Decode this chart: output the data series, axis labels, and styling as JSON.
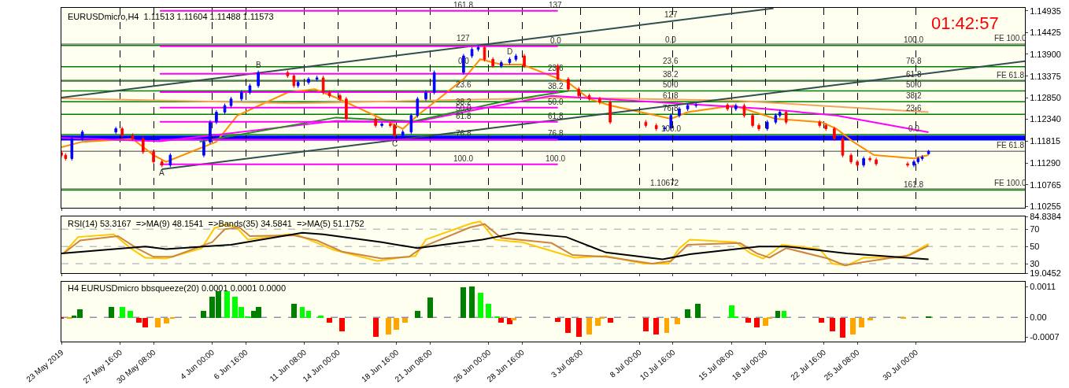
{
  "chart_data": [
    {
      "type": "candlestick",
      "title": "EURUSDmicro,H4  1.11513 1.11604 1.11488 1.11573",
      "x": [
        "2019-05-23T00:00",
        "2019-05-23T08:00",
        "2019-05-23T20:00",
        "2019-05-24T16:00",
        "2019-05-27T08:00",
        "2019-05-27T20:00",
        "2019-05-28T16:00",
        "2019-05-29T12:00",
        "2019-05-30T08:00",
        "2019-05-31T00:00",
        "2019-05-31T16:00",
        "2019-06-03T08:00",
        "2019-06-03T20:00",
        "2019-06-04T08:00",
        "2019-06-05T00:00",
        "2019-06-05T12:00",
        "2019-06-06T08:00",
        "2019-06-07T00:00",
        "2019-06-07T16:00",
        "2019-06-10T00:00",
        "2019-06-10T12:00",
        "2019-06-10T20:00",
        "2019-06-11T16:00",
        "2019-06-12T08:00",
        "2019-06-12T20:00",
        "2019-06-13T08:00",
        "2019-06-14T04:00",
        "2019-06-14T16:00",
        "2019-06-17T00:00",
        "2019-06-17T12:00",
        "2019-06-18T04:00",
        "2019-06-18T12:00",
        "2019-06-19T04:00",
        "2019-06-19T20:00",
        "2019-06-20T08:00",
        "2019-06-21T00:00",
        "2019-06-21T16:00",
        "2019-06-24T00:00",
        "2019-06-24T16:00",
        "2019-06-25T04:00",
        "2019-06-25T16:00",
        "2019-06-26T08:00",
        "2019-06-27T00:00",
        "2019-06-27T16:00",
        "2019-06-28T04:00",
        "2019-06-28T20:00",
        "2019-07-01T12:00",
        "2019-07-02T08:00",
        "2019-07-03T04:00",
        "2019-07-04T00:00",
        "2019-07-04T20:00",
        "2019-07-05T16:00",
        "2019-07-08T12:00",
        "2019-07-09T08:00",
        "2019-07-10T00:00",
        "2019-07-10T12:00",
        "2019-07-11T04:00",
        "2019-07-11T20:00",
        "2019-07-12T12:00",
        "2019-07-15T00:00",
        "2019-07-15T16:00",
        "2019-07-16T08:00",
        "2019-07-17T00:00",
        "2019-07-17T12:00",
        "2019-07-18T04:00",
        "2019-07-18T20:00",
        "2019-07-19T04:00",
        "2019-07-19T16:00",
        "2019-07-22T08:00",
        "2019-07-22T20:00",
        "2019-07-23T12:00",
        "2019-07-24T04:00",
        "2019-07-24T20:00",
        "2019-07-25T08:00",
        "2019-07-25T20:00",
        "2019-07-26T08:00",
        "2019-07-26T20:00",
        "2019-07-29T08:00",
        "2019-07-29T20:00",
        "2019-07-30T04:00",
        "2019-07-30T12:00",
        "2019-07-31T00:00"
      ],
      "ohlc": [
        [
          1.1154,
          1.1159,
          1.11428,
          1.11478
        ],
        [
          1.11478,
          1.11528,
          1.11348,
          1.11398
        ],
        [
          1.11398,
          1.11924,
          1.11348,
          1.11874
        ],
        [
          1.11874,
          1.12083,
          1.11824,
          1.12033
        ],
        [
          1.12033,
          1.12162,
          1.11983,
          1.12112
        ],
        [
          1.12112,
          1.12162,
          1.11903,
          1.11953
        ],
        [
          1.11953,
          1.12003,
          1.11824,
          1.11874
        ],
        [
          1.11874,
          1.11924,
          1.11507,
          1.11557
        ],
        [
          1.11557,
          1.11607,
          1.11269,
          1.11319
        ],
        [
          1.11319,
          1.11369,
          1.1119,
          1.1124
        ],
        [
          1.1124,
          1.11528,
          1.1119,
          1.11478
        ],
        [
          1.11478,
          1.11845,
          1.11428,
          1.11795
        ],
        [
          1.11795,
          1.12321,
          1.11745,
          1.12271
        ],
        [
          1.12271,
          1.12558,
          1.12221,
          1.12508
        ],
        [
          1.12508,
          1.12717,
          1.12458,
          1.12667
        ],
        [
          1.12667,
          1.12876,
          1.12617,
          1.12826
        ],
        [
          1.12826,
          1.13034,
          1.12776,
          1.12984
        ],
        [
          1.12984,
          1.13193,
          1.12934,
          1.13143
        ],
        [
          1.13143,
          1.1351,
          1.13093,
          1.1346
        ],
        [
          1.1346,
          1.1351,
          1.13331,
          1.13381
        ],
        [
          1.13381,
          1.13431,
          1.13093,
          1.13143
        ],
        [
          1.13143,
          1.13272,
          1.13093,
          1.13222
        ],
        [
          1.13222,
          1.13351,
          1.13172,
          1.13301
        ],
        [
          1.13301,
          1.13383,
          1.13251,
          1.13333
        ],
        [
          1.13333,
          1.13383,
          1.12934,
          1.12984
        ],
        [
          1.12984,
          1.13034,
          1.12855,
          1.12905
        ],
        [
          1.12905,
          1.12955,
          1.12776,
          1.12826
        ],
        [
          1.12826,
          1.12876,
          1.123,
          1.1235
        ],
        [
          1.1235,
          1.124,
          1.12141,
          1.12191
        ],
        [
          1.12191,
          1.12273,
          1.12141,
          1.12223
        ],
        [
          1.12223,
          1.12273,
          1.12141,
          1.12191
        ],
        [
          1.12191,
          1.12241,
          1.11903,
          1.11953
        ],
        [
          1.11953,
          1.12083,
          1.11903,
          1.12033
        ],
        [
          1.12033,
          1.12479,
          1.11983,
          1.12429
        ],
        [
          1.12429,
          1.12876,
          1.12379,
          1.12826
        ],
        [
          1.12826,
          1.13034,
          1.12776,
          1.12984
        ],
        [
          1.12984,
          1.1351,
          1.12934,
          1.1346
        ],
        [
          1.1346,
          1.13907,
          1.1341,
          1.13857
        ],
        [
          1.13857,
          1.14065,
          1.13807,
          1.14015
        ],
        [
          1.14015,
          1.14113,
          1.13965,
          1.14063
        ],
        [
          1.14063,
          1.14113,
          1.13727,
          1.13777
        ],
        [
          1.13777,
          1.13827,
          1.13569,
          1.13619
        ],
        [
          1.13619,
          1.13748,
          1.13569,
          1.13698
        ],
        [
          1.13698,
          1.13827,
          1.13648,
          1.13777
        ],
        [
          1.13777,
          1.13907,
          1.13727,
          1.13857
        ],
        [
          1.13857,
          1.13907,
          1.13569,
          1.13619
        ],
        [
          1.13619,
          1.13669,
          1.13251,
          1.13301
        ],
        [
          1.13301,
          1.13351,
          1.13014,
          1.13064
        ],
        [
          1.13064,
          1.13114,
          1.12855,
          1.12905
        ],
        [
          1.12905,
          1.12955,
          1.12776,
          1.12826
        ],
        [
          1.12826,
          1.12876,
          1.12696,
          1.12746
        ],
        [
          1.12746,
          1.12796,
          1.12221,
          1.12271
        ],
        [
          1.12271,
          1.12321,
          1.12141,
          1.12191
        ],
        [
          1.12191,
          1.12241,
          1.12062,
          1.12112
        ],
        [
          1.12112,
          1.1218,
          1.12062,
          1.1213
        ],
        [
          1.1213,
          1.12479,
          1.1208,
          1.12429
        ],
        [
          1.12429,
          1.12638,
          1.12379,
          1.12588
        ],
        [
          1.12588,
          1.12717,
          1.12538,
          1.12667
        ],
        [
          1.12667,
          1.1273,
          1.12617,
          1.1268
        ],
        [
          1.1268,
          1.1273,
          1.12538,
          1.12588
        ],
        [
          1.12588,
          1.12717,
          1.12538,
          1.12667
        ],
        [
          1.12667,
          1.12717,
          1.12379,
          1.12429
        ],
        [
          1.12429,
          1.12479,
          1.12141,
          1.12191
        ],
        [
          1.12191,
          1.12241,
          1.12062,
          1.12112
        ],
        [
          1.12112,
          1.12321,
          1.12062,
          1.12271
        ],
        [
          1.12271,
          1.12479,
          1.12221,
          1.12429
        ],
        [
          1.12429,
          1.12558,
          1.12379,
          1.12508
        ],
        [
          1.12508,
          1.12558,
          1.12221,
          1.12271
        ],
        [
          1.12271,
          1.12321,
          1.12141,
          1.12191
        ],
        [
          1.12191,
          1.12241,
          1.12062,
          1.12112
        ],
        [
          1.12112,
          1.12162,
          1.11824,
          1.11874
        ],
        [
          1.11874,
          1.11924,
          1.11428,
          1.11478
        ],
        [
          1.11478,
          1.11528,
          1.11269,
          1.11319
        ],
        [
          1.11319,
          1.11369,
          1.1119,
          1.1124
        ],
        [
          1.1124,
          1.11448,
          1.1119,
          1.11398
        ],
        [
          1.11398,
          1.11448,
          1.11317,
          1.11367
        ],
        [
          1.11367,
          1.11417,
          1.11221,
          1.11271
        ],
        [
          1.11271,
          1.11321,
          1.1119,
          1.1124
        ],
        [
          1.1124,
          1.11369,
          1.1119,
          1.11319
        ],
        [
          1.11319,
          1.11448,
          1.11269,
          1.11398
        ],
        [
          1.11398,
          1.1148,
          1.11348,
          1.1143
        ],
        [
          1.11513,
          1.11604,
          1.11488,
          1.11573
        ]
      ],
      "colors": [
        "#ff0000",
        "#ff0000",
        "#0000ff",
        "#0000ff",
        "#0000ff",
        "#ff0000",
        "#ff0000",
        "#ff0000",
        "#ff0000",
        "#ff0000",
        "#0000ff",
        "#0000ff",
        "#0000ff",
        "#0000ff",
        "#0000ff",
        "#0000ff",
        "#0000ff",
        "#0000ff",
        "#0000ff",
        "#ff0000",
        "#ff0000",
        "#0000ff",
        "#0000ff",
        "#0000ff",
        "#ff0000",
        "#ff0000",
        "#ff0000",
        "#ff0000",
        "#ff0000",
        "#0000ff",
        "#ff0000",
        "#ff0000",
        "#0000ff",
        "#0000ff",
        "#0000ff",
        "#0000ff",
        "#0000ff",
        "#0000ff",
        "#0000ff",
        "#0000ff",
        "#ff0000",
        "#ff0000",
        "#0000ff",
        "#0000ff",
        "#0000ff",
        "#ff0000",
        "#ff0000",
        "#ff0000",
        "#ff0000",
        "#ff0000",
        "#ff0000",
        "#ff0000",
        "#ff0000",
        "#ff0000",
        "#0000ff",
        "#0000ff",
        "#0000ff",
        "#0000ff",
        "#0000ff",
        "#ff0000",
        "#0000ff",
        "#ff0000",
        "#ff0000",
        "#ff0000",
        "#0000ff",
        "#0000ff",
        "#0000ff",
        "#ff0000",
        "#ff0000",
        "#ff0000",
        "#ff0000",
        "#ff0000",
        "#ff0000",
        "#ff0000",
        "#0000ff",
        "#ff0000",
        "#ff0000",
        "#ff0000",
        "#0000ff",
        "#0000ff",
        "#0000ff",
        "#0000ff"
      ],
      "series": [
        {
          "type": "line",
          "color": "#ff8c00",
          "x": [
            "2019-05-23T00:00",
            "2019-05-24T16:00",
            "2019-05-28T16:00",
            "2019-05-30T08:00",
            "2019-05-31T08:00",
            "2019-06-04T08:00",
            "2019-06-06T00:00",
            "2019-06-10T00:00",
            "2019-06-12T04:00",
            "2019-06-13T20:00",
            "2019-06-17T12:00",
            "2019-06-19T04:00",
            "2019-06-20T08:00",
            "2019-06-24T00:00",
            "2019-06-25T08:00",
            "2019-06-27T00:00",
            "2019-06-28T16:00",
            "2019-07-02T08:00",
            "2019-07-04T00:00",
            "2019-07-05T16:00",
            "2019-07-09T08:00",
            "2019-07-10T12:00",
            "2019-07-11T20:00",
            "2019-07-15T12:00",
            "2019-07-17T04:00",
            "2019-07-18T20:00",
            "2019-07-22T12:00",
            "2019-07-23T16:00",
            "2019-07-25T00:00",
            "2019-07-26T16:00",
            "2019-07-29T20:00",
            "2019-07-31T00:00"
          ],
          "values": [
            1.1167,
            1.118,
            1.1187,
            1.1148,
            1.1132,
            1.118,
            1.1243,
            1.1298,
            1.1306,
            1.1286,
            1.1235,
            1.1211,
            1.1243,
            1.133,
            1.1378,
            1.1365,
            1.1365,
            1.1322,
            1.1283,
            1.1267,
            1.1243,
            1.1235,
            1.1251,
            1.1267,
            1.1251,
            1.1235,
            1.1227,
            1.1211,
            1.118,
            1.1148,
            1.114,
            1.1148
          ]
        },
        {
          "type": "line",
          "color": "#f4a460",
          "x": [
            "2019-05-23T00:00",
            "2019-06-10T12:00",
            "2019-07-02T08:00",
            "2019-07-15T12:00",
            "2019-07-31T00:00"
          ],
          "values": [
            1.1284,
            1.1272,
            1.1286,
            1.1279,
            1.1251
          ]
        },
        {
          "type": "line",
          "color": "#ff00ff",
          "x": [
            "2019-05-23T00:00",
            "2019-05-30T20:00",
            "2019-06-13T20:00",
            "2019-06-20T00:00",
            "2019-06-25T08:00",
            "2019-07-01T00:00",
            "2019-07-09T08:00",
            "2019-07-18T00:00",
            "2019-07-23T16:00",
            "2019-07-31T00:00"
          ],
          "values": [
            1.1189,
            1.1181,
            1.123,
            1.1227,
            1.1259,
            1.129,
            1.1275,
            1.1259,
            1.1243,
            1.1203
          ]
        },
        {
          "type": "line",
          "color": "#228b22",
          "x": [
            "2019-06-03T00:00",
            "2019-06-13T20:00",
            "2019-06-20T00:00",
            "2019-06-27T08:00",
            "2019-07-02T08:00"
          ],
          "values": [
            1.118,
            1.1238,
            1.1229,
            1.1278,
            1.1302
          ]
        },
        {
          "type": "line",
          "color": "#2f4f4f",
          "x": [
            "2019-05-23T00:00",
            "2019-07-18T16:00"
          ],
          "values": [
            1.1286,
            1.15
          ]
        },
        {
          "type": "line",
          "color": "#2f4f4f",
          "x": [
            "2019-05-31T00:00",
            "2019-08-07T16:00"
          ],
          "values": [
            1.1114,
            1.1373
          ]
        },
        {
          "type": "line",
          "color": "#ff00ff",
          "x": [
            "2019-05-30T20:00",
            "2019-07-01T12:00"
          ],
          "values": [
            1.1494,
            1.1494
          ]
        },
        {
          "type": "line",
          "color": "#ff00ff",
          "x": [
            "2019-05-30T20:00",
            "2019-07-01T12:00"
          ],
          "values": [
            1.1409,
            1.1409
          ]
        },
        {
          "type": "line",
          "color": "#ff00ff",
          "x": [
            "2019-05-30T20:00",
            "2019-07-01T12:00"
          ],
          "values": [
            1.1343,
            1.1343
          ]
        },
        {
          "type": "line",
          "color": "#ff00ff",
          "x": [
            "2019-05-30T20:00",
            "2019-07-01T12:00"
          ],
          "values": [
            1.1299,
            1.1299
          ]
        },
        {
          "type": "line",
          "color": "#ff00ff",
          "x": [
            "2019-05-30T20:00",
            "2019-07-01T12:00"
          ],
          "values": [
            1.1262,
            1.1262
          ]
        },
        {
          "type": "line",
          "color": "#ff00ff",
          "x": [
            "2019-05-30T20:00",
            "2019-07-01T12:00"
          ],
          "values": [
            1.1228,
            1.1228
          ]
        },
        {
          "type": "line",
          "color": "#ff00ff",
          "x": [
            "2019-05-30T20:00",
            "2019-07-01T12:00"
          ],
          "values": [
            1.1185,
            1.1185
          ]
        },
        {
          "type": "line",
          "color": "#ff00ff",
          "x": [
            "2019-05-30T20:00",
            "2019-07-01T12:00"
          ],
          "values": [
            1.1126,
            1.1126
          ]
        }
      ],
      "xlim": [
        "2019-05-23T00:00",
        "2019-08-07T16:00"
      ],
      "xticks": [
        {
          "value": "2019-05-23T00:00",
          "label": null
        },
        {
          "value": "2019-05-27T16:00",
          "label": null
        },
        {
          "value": "2019-05-30T08:00",
          "label": null
        },
        {
          "value": "2019-06-04T00:00",
          "label": null
        },
        {
          "value": "2019-06-06T16:00",
          "label": null
        },
        {
          "value": "2019-06-11T08:00",
          "label": null
        },
        {
          "value": "2019-06-14T00:00",
          "label": null
        },
        {
          "value": "2019-06-18T16:00",
          "label": null
        },
        {
          "value": "2019-06-21T08:00",
          "label": null
        },
        {
          "value": "2019-06-26T00:00",
          "label": null
        },
        {
          "value": "2019-06-28T16:00",
          "label": null
        },
        {
          "value": "2019-07-03T08:00",
          "label": null
        },
        {
          "value": "2019-07-08T00:00",
          "label": null
        },
        {
          "value": "2019-07-10T16:00",
          "label": null
        },
        {
          "value": "2019-07-15T08:00",
          "label": null
        },
        {
          "value": "2019-07-18T00:00",
          "label": null
        },
        {
          "value": "2019-07-22T16:00",
          "label": null
        },
        {
          "value": "2019-07-25T08:00",
          "label": null
        },
        {
          "value": "2019-07-30T00:00",
          "label": null
        }
      ],
      "ylim": [
        1.1021,
        1.1501
      ],
      "yticks": [
        1.14935,
        1.14425,
        {
          "value": 1.139,
          "label": "1.13900"
        },
        1.13375,
        {
          "value": 1.1285,
          "label": "1.12850"
        },
        {
          "value": 1.1234,
          "label": "1.12340"
        },
        1.11815,
        {
          "value": 1.1129,
          "label": "1.11290"
        },
        1.10765,
        1.10255
      ],
      "grid": "x",
      "tick_labels": "y",
      "ref_lines": [
        {
          "axis": "y",
          "value": 1.1411,
          "color": "#008000"
        },
        {
          "axis": "y",
          "value": 1.136,
          "color": "#008000"
        },
        {
          "axis": "y",
          "value": 1.1327,
          "color": "#008000"
        },
        {
          "axis": "y",
          "value": 1.1302,
          "color": "#008000"
        },
        {
          "axis": "y",
          "value": 1.1276,
          "color": "#008000"
        },
        {
          "axis": "y",
          "value": 1.1246,
          "color": "#008000"
        },
        {
          "axis": "y",
          "value": 1.1197,
          "color": "#008000"
        },
        {
          "axis": "y",
          "value": 1.1064,
          "color": "#008000"
        },
        {
          "axis": "y",
          "value": 1.1414,
          "color": "#808080"
        },
        {
          "axis": "y",
          "value": 1.1325,
          "color": "#808080"
        },
        {
          "axis": "y",
          "value": 1.1157,
          "color": "#808080"
        },
        {
          "axis": "y",
          "value": 1.10672,
          "color": "#808080"
        }
      ],
      "bands": [
        {
          "axis": "y",
          "from": 1.1183,
          "to": 1.1195,
          "color": "#0000ff"
        }
      ],
      "annotations": [
        "01:42:57",
        {
          "text": "A",
          "x": "2019-05-31T00:00",
          "y": 1.1119
        },
        {
          "text": "B",
          "x": "2019-06-07T16:00",
          "y": 1.1351
        },
        {
          "text": "C",
          "x": "2019-06-18T12:00",
          "y": 1.11903
        },
        {
          "text": "D",
          "x": "2019-06-27T16:00",
          "y": 1.13827
        },
        {
          "text": "1.10672",
          "x": "2019-07-10T00:00",
          "y": 1.10672
        },
        {
          "text": "100.0",
          "x": "2019-07-29T20:00",
          "y": 1.1411
        },
        {
          "text": "76.8",
          "x": "2019-07-29T20:00",
          "y": 1.136
        },
        {
          "text": "61.8",
          "x": "2019-07-29T20:00",
          "y": 1.1327
        },
        {
          "text": "50.0",
          "x": "2019-07-29T20:00",
          "y": 1.1302
        },
        {
          "text": "38.2",
          "x": "2019-07-29T20:00",
          "y": 1.1276
        },
        {
          "text": "23.6",
          "x": "2019-07-29T20:00",
          "y": 1.1246
        },
        {
          "text": "0.0",
          "x": "2019-07-29T20:00",
          "y": 1.1197
        },
        {
          "text": "161.8",
          "x": "2019-07-29T20:00",
          "y": 1.1064
        },
        {
          "text": "FE 100.0",
          "x": "2019-08-06T12:00",
          "y": 1.1414
        },
        {
          "text": "FE 61.8",
          "x": "2019-08-06T12:00",
          "y": 1.1325
        },
        {
          "text": "FE 61.8",
          "x": "2019-08-06T12:00",
          "y": 1.1157
        },
        {
          "text": "FE 100.0",
          "x": "2019-08-06T12:00",
          "y": 1.10672
        },
        {
          "text": "127",
          "x": "2019-07-10T12:00",
          "y": 1.147
        },
        {
          "text": "0.0",
          "x": "2019-07-10T12:00",
          "y": 1.1411
        },
        {
          "text": "23.6",
          "x": "2019-07-10T12:00",
          "y": 1.136
        },
        {
          "text": "38.2",
          "x": "2019-07-10T12:00",
          "y": 1.1327
        },
        {
          "text": "50.0",
          "x": "2019-07-10T12:00",
          "y": 1.1302
        },
        {
          "text": "61.8",
          "x": "2019-07-10T12:00",
          "y": 1.1276
        },
        {
          "text": "76.8",
          "x": "2019-07-10T12:00",
          "y": 1.1246
        },
        {
          "text": "100.0",
          "x": "2019-07-10T12:00",
          "y": 1.1197
        },
        {
          "text": "161.8",
          "x": "2019-06-24T00:00",
          "y": 1.1494
        },
        {
          "text": "127",
          "x": "2019-06-24T00:00",
          "y": 1.1414
        },
        {
          "text": "0.0",
          "x": "2019-06-24T00:00",
          "y": 1.136
        },
        {
          "text": "23.6",
          "x": "2019-06-24T00:00",
          "y": 1.1302
        },
        {
          "text": "38.2",
          "x": "2019-06-24T00:00",
          "y": 1.1262
        },
        {
          "text": "50.0",
          "x": "2019-06-24T00:00",
          "y": 1.1246
        },
        {
          "text": "61.8",
          "x": "2019-06-24T00:00",
          "y": 1.1228
        },
        {
          "text": "76.8",
          "x": "2019-06-24T00:00",
          "y": 1.1185
        },
        {
          "text": "100.0",
          "x": "2019-06-24T00:00",
          "y": 1.1126
        },
        {
          "text": "137",
          "x": "2019-07-01T08:00",
          "y": 1.1494
        },
        {
          "text": "0.0",
          "x": "2019-07-01T08:00",
          "y": 1.1409
        },
        {
          "text": "23.6",
          "x": "2019-07-01T08:00",
          "y": 1.1343
        },
        {
          "text": "38.2",
          "x": "2019-07-01T08:00",
          "y": 1.1299
        },
        {
          "text": "50.0",
          "x": "2019-07-01T08:00",
          "y": 1.1262
        },
        {
          "text": "61.8",
          "x": "2019-07-01T08:00",
          "y": 1.1228
        },
        {
          "text": "76.8",
          "x": "2019-07-01T08:00",
          "y": 1.1185
        },
        {
          "text": "100.0",
          "x": "2019-07-01T08:00",
          "y": 1.1126
        }
      ]
    },
    {
      "type": "line",
      "title": "RSI(14) 53.3167  =>MA(9) 48.1541  =>Bands(35) 34.5841  =>MA(5) 51.1752",
      "series": [
        {
          "color": "#ffc800",
          "x": [
            "2019-05-23T04:00",
            "2019-05-24T08:00",
            "2019-05-27T04:00",
            "2019-05-28T12:00",
            "2019-05-29T16:00",
            "2019-05-31T08:00",
            "2019-06-03T04:00",
            "2019-06-04T04:00",
            "2019-06-05T04:00",
            "2019-06-06T00:00",
            "2019-06-06T20:00",
            "2019-06-10T00:00",
            "2019-06-10T20:00",
            "2019-06-12T04:00",
            "2019-06-13T16:00",
            "2019-06-17T04:00",
            "2019-06-18T20:00",
            "2019-06-20T04:00",
            "2019-06-21T00:00",
            "2019-06-24T16:00",
            "2019-06-25T08:00",
            "2019-06-26T12:00",
            "2019-06-27T16:00",
            "2019-06-28T16:00",
            "2019-07-01T16:00",
            "2019-07-02T20:00",
            "2019-07-05T08:00",
            "2019-07-08T08:00",
            "2019-07-10T08:00",
            "2019-07-11T04:00",
            "2019-07-12T00:00",
            "2019-07-15T16:00",
            "2019-07-16T20:00",
            "2019-07-17T20:00",
            "2019-07-18T20:00",
            "2019-07-19T08:00",
            "2019-07-22T08:00",
            "2019-07-23T08:00",
            "2019-07-24T12:00",
            "2019-07-25T20:00",
            "2019-07-29T00:00",
            "2019-07-31T00:00"
          ],
          "values": [
            42,
            61,
            64,
            48,
            37,
            36,
            48,
            71,
            76,
            71,
            58,
            64,
            63,
            55,
            46,
            33,
            37,
            39,
            58,
            77,
            79,
            58,
            56,
            55,
            42,
            37,
            39,
            30,
            30,
            48,
            58,
            55,
            42,
            36,
            46,
            52,
            47,
            30,
            28,
            37,
            37,
            53
          ]
        },
        {
          "color": "#cd853f",
          "x": [
            "2019-05-23T04:00",
            "2019-05-24T12:00",
            "2019-05-27T12:00",
            "2019-05-29T00:00",
            "2019-05-30T08:00",
            "2019-05-31T20:00",
            "2019-06-04T00:00",
            "2019-06-05T00:00",
            "2019-06-06T04:00",
            "2019-06-07T00:00",
            "2019-06-10T12:00",
            "2019-06-12T08:00",
            "2019-06-14T08:00",
            "2019-06-17T12:00",
            "2019-06-19T16:00",
            "2019-06-20T20:00",
            "2019-06-24T12:00",
            "2019-06-25T16:00",
            "2019-06-27T00:00",
            "2019-07-01T00:00",
            "2019-07-02T16:00",
            "2019-07-05T08:00",
            "2019-07-09T00:00",
            "2019-07-10T12:00",
            "2019-07-11T20:00",
            "2019-07-16T00:00",
            "2019-07-17T08:00",
            "2019-07-18T08:00",
            "2019-07-19T16:00",
            "2019-07-23T00:00",
            "2019-07-24T08:00",
            "2019-07-25T20:00",
            "2019-07-29T12:00",
            "2019-07-31T00:00"
          ],
          "values": [
            42,
            57,
            62,
            48,
            38,
            38,
            55,
            70,
            72,
            62,
            63,
            57,
            44,
            36,
            38,
            50,
            72,
            76,
            60,
            54,
            40,
            38,
            30,
            33,
            52,
            54,
            42,
            37,
            48,
            36,
            28,
            32,
            40,
            51
          ]
        },
        {
          "color": "#000000",
          "x": [
            "2019-05-23T00:00",
            "2019-05-29T16:00",
            "2019-05-31T08:00",
            "2019-06-05T12:00",
            "2019-06-11T04:00",
            "2019-06-12T20:00",
            "2019-06-17T12:00",
            "2019-06-20T08:00",
            "2019-06-25T12:00",
            "2019-06-28T08:00",
            "2019-07-02T04:00",
            "2019-07-05T08:00",
            "2019-07-09T20:00",
            "2019-07-12T00:00",
            "2019-07-17T12:00",
            "2019-07-19T16:00",
            "2019-07-24T12:00",
            "2019-07-31T00:00"
          ],
          "values": [
            42,
            50,
            47,
            52,
            66,
            64,
            55,
            48,
            58,
            66,
            61,
            43,
            35,
            41,
            50,
            50,
            42,
            35
          ]
        }
      ],
      "xlim": [
        "2019-05-23T00:00",
        "2019-08-07T16:00"
      ],
      "xticks": [
        {
          "value": "2019-05-23T00:00",
          "label": null
        },
        {
          "value": "2019-05-27T16:00",
          "label": null
        },
        {
          "value": "2019-05-30T08:00",
          "label": null
        },
        {
          "value": "2019-06-04T00:00",
          "label": null
        },
        {
          "value": "2019-06-06T16:00",
          "label": null
        },
        {
          "value": "2019-06-11T08:00",
          "label": null
        },
        {
          "value": "2019-06-14T00:00",
          "label": null
        },
        {
          "value": "2019-06-18T16:00",
          "label": null
        },
        {
          "value": "2019-06-21T08:00",
          "label": null
        },
        {
          "value": "2019-06-26T00:00",
          "label": null
        },
        {
          "value": "2019-06-28T16:00",
          "label": null
        },
        {
          "value": "2019-07-03T08:00",
          "label": null
        },
        {
          "value": "2019-07-08T00:00",
          "label": null
        },
        {
          "value": "2019-07-10T16:00",
          "label": null
        },
        {
          "value": "2019-07-15T08:00",
          "label": null
        },
        {
          "value": "2019-07-18T00:00",
          "label": null
        },
        {
          "value": "2019-07-22T16:00",
          "label": null
        },
        {
          "value": "2019-07-25T08:00",
          "label": null
        },
        {
          "value": "2019-07-30T00:00",
          "label": null
        }
      ],
      "ylim": [
        19.0452,
        84.8384
      ],
      "yticks": [
        84.8384,
        70,
        50,
        30,
        19.0452
      ],
      "tick_labels": "y",
      "ref_lines": [
        {
          "axis": "y",
          "value": 70,
          "color": "#c0c0c0",
          "line_style": "dashed"
        },
        {
          "axis": "y",
          "value": 50,
          "color": "#c0c0c0",
          "line_style": "dashed"
        },
        {
          "axis": "y",
          "value": 30,
          "color": "#c0c0c0",
          "line_style": "dashed"
        }
      ]
    },
    {
      "type": "bar",
      "title": "H4 EURUSDmicro bbsqueeze(20) 0.0001 0.0001 0.0000",
      "x": [
        "2019-05-23T00:00",
        "2019-05-23T16:00",
        "2019-05-24T00:00",
        "2019-05-24T12:00",
        "2019-05-27T00:00",
        "2019-05-27T20:00",
        "2019-05-28T12:00",
        "2019-05-29T04:00",
        "2019-05-29T16:00",
        "2019-05-30T16:00",
        "2019-05-31T08:00",
        "2019-05-31T20:00",
        "2019-06-03T08:00",
        "2019-06-04T00:00",
        "2019-06-04T12:00",
        "2019-06-05T04:00",
        "2019-06-05T20:00",
        "2019-06-06T08:00",
        "2019-06-06T20:00",
        "2019-06-07T08:00",
        "2019-06-07T16:00",
        "2019-06-10T12:00",
        "2019-06-11T04:00",
        "2019-06-11T16:00",
        "2019-06-12T16:00",
        "2019-06-13T08:00",
        "2019-06-14T08:00",
        "2019-06-17T00:00",
        "2019-06-18T00:00",
        "2019-06-18T16:00",
        "2019-06-19T08:00",
        "2019-06-20T08:00",
        "2019-06-21T08:00",
        "2019-06-24T00:00",
        "2019-06-24T16:00",
        "2019-06-25T08:00",
        "2019-06-26T00:00",
        "2019-06-26T16:00",
        "2019-06-27T00:00",
        "2019-06-27T16:00",
        "2019-06-28T00:00",
        "2019-07-01T12:00",
        "2019-07-02T08:00",
        "2019-07-03T04:00",
        "2019-07-04T00:00",
        "2019-07-04T16:00",
        "2019-07-05T00:00",
        "2019-07-05T16:00",
        "2019-07-08T12:00",
        "2019-07-09T08:00",
        "2019-07-10T04:00",
        "2019-07-11T00:00",
        "2019-07-11T20:00",
        "2019-07-12T16:00",
        "2019-07-15T08:00",
        "2019-07-15T16:00",
        "2019-07-16T16:00",
        "2019-07-17T08:00",
        "2019-07-18T00:00",
        "2019-07-18T08:00",
        "2019-07-19T00:00",
        "2019-07-19T12:00",
        "2019-07-22T12:00",
        "2019-07-23T08:00",
        "2019-07-24T04:00",
        "2019-07-25T00:00",
        "2019-07-25T16:00",
        "2019-07-26T08:00",
        "2019-07-29T00:00",
        "2019-07-31T00:00"
      ],
      "values": [
        -5e-05,
        -5e-05,
        8e-05,
        0.00029,
        0.00039,
        0.00039,
        0.00024,
        -0.00018,
        -0.00034,
        -0.00034,
        -0.00021,
        -3e-05,
        0.00024,
        0.00076,
        0.00094,
        0.00094,
        0.00076,
        0.00037,
        3e-05,
        0.00024,
        0.00039,
        0.0005,
        0.00039,
        0.00024,
        8e-05,
        -0.00018,
        -0.0005,
        -0.00068,
        -0.0006,
        -0.00042,
        -0.00018,
        0.00024,
        0.00071,
        0.00107,
        0.0011,
        0.00089,
        0.0005,
        5e-05,
        -0.00018,
        -0.00024,
        -8e-05,
        -0.00016,
        -0.00055,
        -0.00068,
        -0.0006,
        -0.00029,
        -3e-05,
        -0.00018,
        -0.0005,
        -0.0006,
        -0.00055,
        -0.00024,
        0.00029,
        0.0005,
        0.00045,
        5e-05,
        -0.00018,
        -0.00034,
        -0.00029,
        -3e-05,
        0.00024,
        0.00024,
        -0.00018,
        -0.0005,
        -0.00071,
        -0.0006,
        -0.00034,
        -8e-05,
        -5e-05,
        3e-05
      ],
      "colors": [
        "#ff0000",
        "#ffa500",
        "#008000",
        "#008000",
        "#008000",
        "#00ff00",
        "#00ff00",
        "#ff0000",
        "#ff0000",
        "#ffa500",
        "#ffa500",
        "#ffa500",
        "#008000",
        "#008000",
        "#008000",
        "#00ff00",
        "#00ff00",
        "#00ff00",
        "#00ff00",
        "#008000",
        "#008000",
        "#008000",
        "#00ff00",
        "#00ff00",
        "#00ff00",
        "#ff0000",
        "#ff0000",
        "#ff0000",
        "#ffa500",
        "#ffa500",
        "#ffa500",
        "#008000",
        "#008000",
        "#008000",
        "#008000",
        "#00ff00",
        "#00ff00",
        "#00ff00",
        "#ff0000",
        "#ff0000",
        "#ffa500",
        "#ff0000",
        "#ff0000",
        "#ff0000",
        "#ffa500",
        "#ffa500",
        "#ffa500",
        "#ff0000",
        "#ff0000",
        "#ff0000",
        "#ffa500",
        "#ffa500",
        "#008000",
        "#008000",
        "#00ff00",
        "#00ff00",
        "#ff0000",
        "#ff0000",
        "#ffa500",
        "#ffa500",
        "#008000",
        "#00ff00",
        "#ff0000",
        "#ff0000",
        "#ff0000",
        "#ffa500",
        "#ffa500",
        "#ffa500",
        "#ffa500",
        "#008000"
      ],
      "xlim": [
        "2019-05-23T00:00",
        "2019-08-07T16:00"
      ],
      "xticks": [
        {
          "value": "2019-05-23T00:00",
          "label": "23 May 2019"
        },
        {
          "value": "2019-05-27T16:00",
          "label": "27 May 16:00"
        },
        {
          "value": "2019-05-30T08:00",
          "label": "30 May 08:00"
        },
        {
          "value": "2019-06-04T00:00",
          "label": "4 Jun 00:00"
        },
        {
          "value": "2019-06-06T16:00",
          "label": "6 Jun 16:00"
        },
        {
          "value": "2019-06-11T08:00",
          "label": "11 Jun 08:00"
        },
        {
          "value": "2019-06-14T00:00",
          "label": "14 Jun 00:00"
        },
        {
          "value": "2019-06-18T16:00",
          "label": "18 Jun 16:00"
        },
        {
          "value": "2019-06-21T08:00",
          "label": "21 Jun 08:00"
        },
        {
          "value": "2019-06-26T00:00",
          "label": "26 Jun 00:00"
        },
        {
          "value": "2019-06-28T16:00",
          "label": "28 Jun 16:00"
        },
        {
          "value": "2019-07-03T08:00",
          "label": "3 Jul 08:00"
        },
        {
          "value": "2019-07-08T00:00",
          "label": "8 Jul 00:00"
        },
        {
          "value": "2019-07-10T16:00",
          "label": "10 Jul 16:00"
        },
        {
          "value": "2019-07-15T08:00",
          "label": "15 Jul 08:00"
        },
        {
          "value": "2019-07-18T00:00",
          "label": "18 Jul 00:00"
        },
        {
          "value": "2019-07-22T16:00",
          "label": "22 Jul 16:00"
        },
        {
          "value": "2019-07-25T08:00",
          "label": "25 Jul 08:00"
        },
        {
          "value": "2019-07-30T00:00",
          "label": "30 Jul 00:00"
        }
      ],
      "ylim": [
        -0.00086,
        0.00128
      ],
      "yticks": [
        0.0011,
        {
          "value": 0,
          "label": "0.00"
        },
        -0.0007
      ],
      "ref_lines": [
        {
          "axis": "y",
          "value": 0,
          "color": "#9090b0",
          "line_style": "dashed"
        }
      ]
    }
  ]
}
